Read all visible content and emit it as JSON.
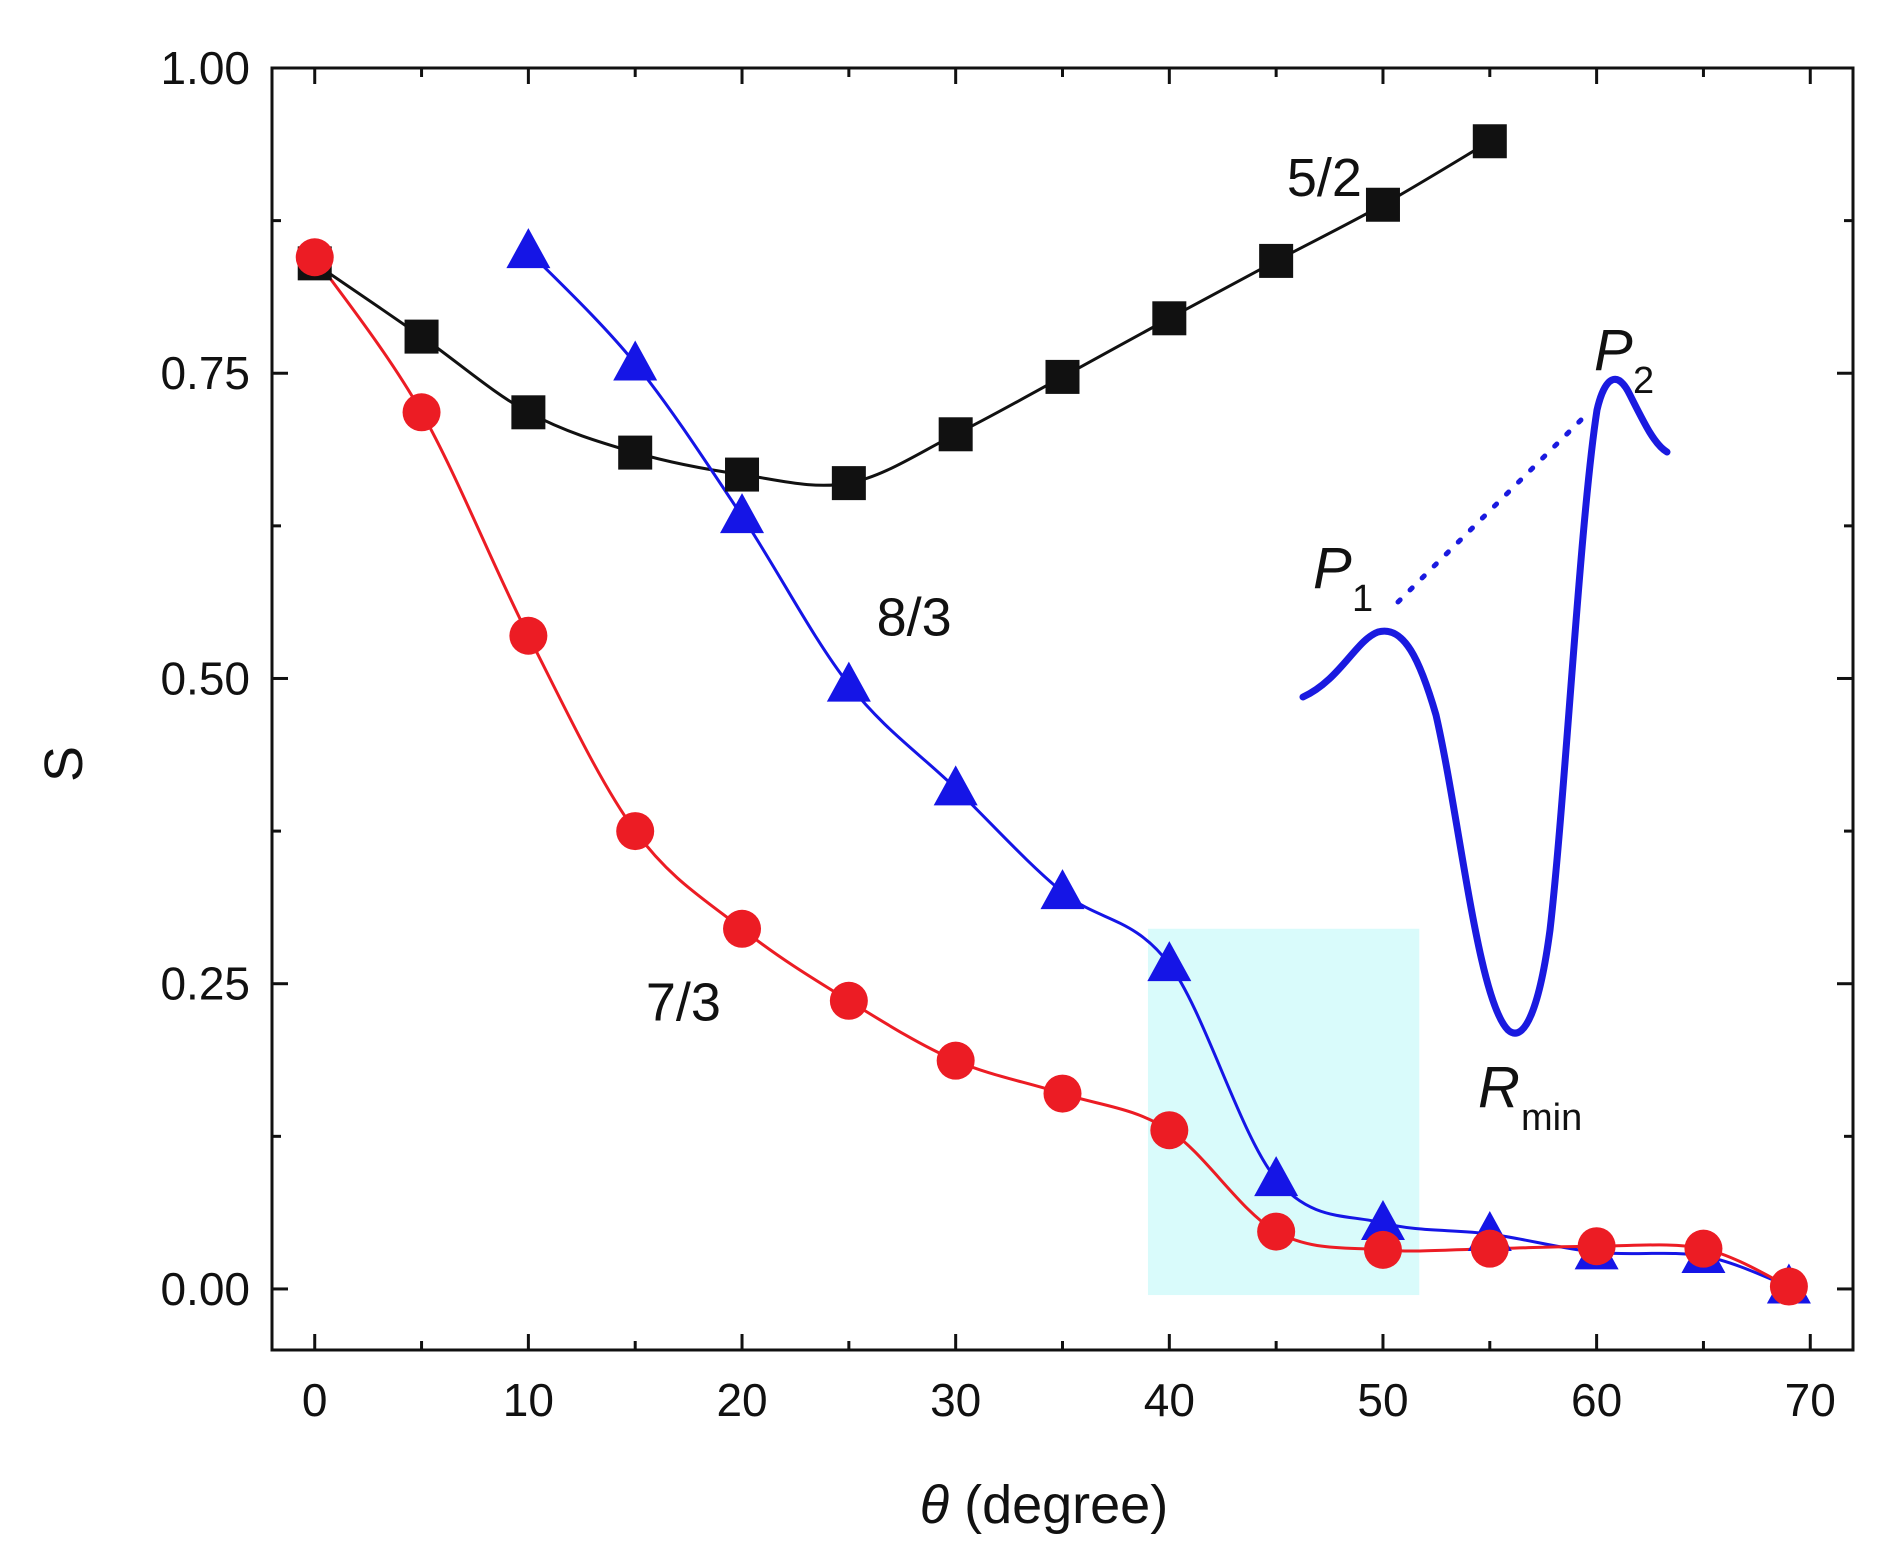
{
  "chart_data": {
    "type": "line",
    "xlabel_symbol": "θ",
    "xlabel": " (degree)",
    "ylabel": "S",
    "xlim": [
      -2,
      72
    ],
    "ylim": [
      -0.05,
      1.0
    ],
    "xticks": [
      0,
      10,
      20,
      30,
      40,
      50,
      60,
      70
    ],
    "xtick_labels": [
      "0",
      "10",
      "20",
      "30",
      "40",
      "50",
      "60",
      "70"
    ],
    "yticks": [
      0.0,
      0.25,
      0.5,
      0.75,
      1.0
    ],
    "ytick_labels": [
      "0.00",
      "0.25",
      "0.50",
      "0.75",
      "1.00"
    ],
    "highlight_region": {
      "x": [
        39,
        51.7
      ],
      "y": [
        -0.005,
        0.295
      ],
      "color": "#d9fbfb"
    },
    "series": [
      {
        "name": "5/2",
        "color": "#111111",
        "marker": "square",
        "x": [
          0,
          5,
          10,
          15,
          20,
          25,
          30,
          35,
          40,
          45,
          50,
          55
        ],
        "y": [
          0.84,
          0.78,
          0.718,
          0.685,
          0.667,
          0.66,
          0.7,
          0.747,
          0.795,
          0.842,
          0.888,
          0.94
        ],
        "label_at": [
          45.5,
          0.895
        ]
      },
      {
        "name": "8/3",
        "color": "#1515e6",
        "marker": "triangle",
        "x": [
          10,
          15,
          20,
          25,
          30,
          35,
          40,
          45,
          50,
          55,
          60,
          65,
          69
        ],
        "y": [
          0.85,
          0.758,
          0.633,
          0.495,
          0.41,
          0.325,
          0.266,
          0.09,
          0.054,
          0.045,
          0.03,
          0.027,
          0.002
        ],
        "label_at": [
          26.3,
          0.535
        ]
      },
      {
        "name": "7/3",
        "color": "#ec1c24",
        "marker": "circle",
        "x": [
          0,
          5,
          10,
          15,
          20,
          25,
          30,
          35,
          40,
          45,
          50,
          55,
          60,
          65,
          69
        ],
        "y": [
          0.845,
          0.718,
          0.535,
          0.375,
          0.295,
          0.236,
          0.187,
          0.16,
          0.13,
          0.047,
          0.032,
          0.033,
          0.035,
          0.033,
          0.002
        ],
        "label_at": [
          15.5,
          0.22
        ]
      }
    ],
    "inset": {
      "color": "#1a1ae0",
      "labels": [
        {
          "main": "P",
          "sub": "1"
        },
        {
          "main": "P",
          "sub": "2"
        },
        {
          "main": "R",
          "sub": "min"
        }
      ]
    }
  }
}
